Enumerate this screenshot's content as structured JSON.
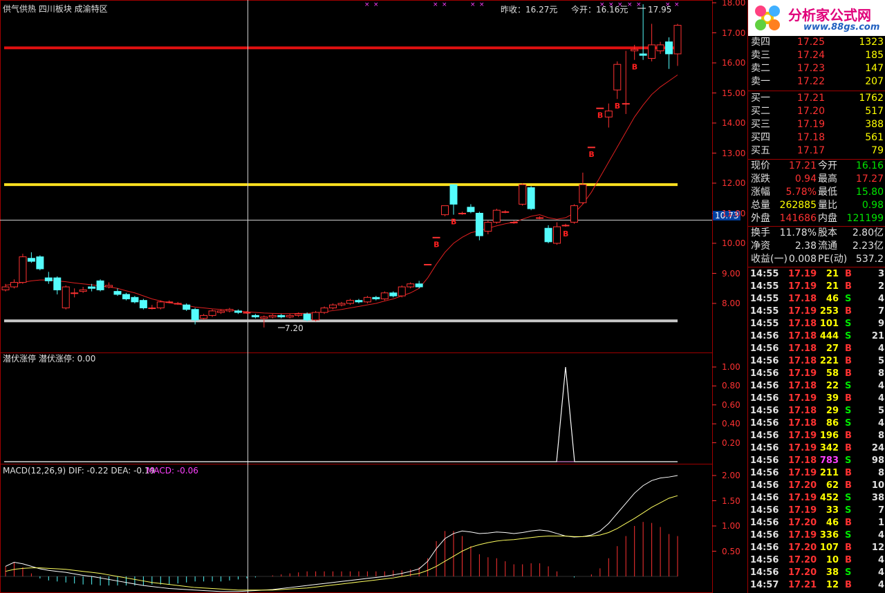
{
  "top_info": {
    "title": "供气供热 四川板块 成渝特区",
    "prev_close": "昨收：16.27元",
    "open": "今开：16.16元",
    "high_mark": "17.95",
    "low_mark": "7.20",
    "crosshair_value": "10.73"
  },
  "indicator2_title": "潜伏涨停  潜伏涨停: 0.00",
  "macd_title": "MACD(12,26,9)  DIF: -0.22  DEA: -0.19",
  "macd_value": "MACD: -0.06",
  "colors": {
    "up": "#ff3232",
    "down": "#54fcfc",
    "ma": "#e02020",
    "grid": "#a00000",
    "axis": "#ff3232"
  },
  "main_axis": [
    "18.00",
    "17.00",
    "16.00",
    "15.00",
    "14.00",
    "13.00",
    "12.00",
    "11.00",
    "10.00",
    "9.00",
    "8.00"
  ],
  "ind_axis": [
    "1.00",
    "0.80",
    "0.60",
    "0.40",
    "0.20"
  ],
  "macd_axis": [
    "2.00",
    "1.50",
    "1.00",
    "0.50"
  ],
  "hlines": {
    "red": 16.5,
    "yellow": 11.95,
    "gray": 7.42
  },
  "chart_data": {
    "type": "candlestick",
    "price_range": [
      7.0,
      18.0
    ],
    "candles": [
      [
        8.45,
        8.55,
        8.4,
        8.65
      ],
      [
        8.55,
        8.7,
        8.5,
        8.8
      ],
      [
        8.7,
        9.55,
        8.65,
        9.65
      ],
      [
        9.5,
        9.4,
        9.35,
        9.7
      ],
      [
        9.55,
        9.15,
        9.1,
        9.6
      ],
      [
        8.85,
        8.75,
        8.65,
        9.05
      ],
      [
        8.85,
        8.45,
        8.3,
        8.9
      ],
      [
        7.85,
        8.55,
        7.8,
        8.6
      ],
      [
        8.35,
        8.35,
        8.2,
        8.5
      ],
      [
        8.4,
        8.45,
        8.35,
        8.55
      ],
      [
        8.55,
        8.5,
        8.4,
        8.65
      ],
      [
        8.75,
        8.45,
        8.4,
        8.8
      ],
      [
        8.55,
        8.6,
        8.5,
        8.7
      ],
      [
        8.4,
        8.3,
        8.25,
        8.5
      ],
      [
        8.3,
        8.15,
        8.1,
        8.35
      ],
      [
        8.2,
        8.05,
        8.0,
        8.25
      ],
      [
        8.1,
        7.85,
        7.8,
        8.15
      ],
      [
        7.85,
        7.85,
        7.8,
        7.95
      ],
      [
        7.85,
        8.05,
        7.8,
        8.1
      ],
      [
        8.05,
        8.05,
        8.0,
        8.1
      ],
      [
        8.0,
        8.0,
        7.95,
        8.05
      ],
      [
        7.95,
        7.8,
        7.75,
        8.0
      ],
      [
        7.8,
        7.45,
        7.3,
        7.85
      ],
      [
        7.5,
        7.6,
        7.45,
        7.65
      ],
      [
        7.6,
        7.75,
        7.55,
        7.8
      ],
      [
        7.7,
        7.75,
        7.65,
        7.8
      ],
      [
        7.75,
        7.8,
        7.7,
        7.85
      ],
      [
        7.75,
        7.7,
        7.65,
        7.8
      ],
      [
        7.7,
        7.7,
        7.65,
        7.75
      ],
      [
        7.6,
        7.55,
        7.5,
        7.65
      ],
      [
        7.5,
        7.55,
        7.2,
        7.6
      ],
      [
        7.55,
        7.6,
        7.5,
        7.65
      ],
      [
        7.6,
        7.55,
        7.5,
        7.65
      ],
      [
        7.55,
        7.6,
        7.5,
        7.65
      ],
      [
        7.6,
        7.65,
        7.55,
        7.7
      ],
      [
        7.65,
        7.45,
        7.4,
        7.7
      ],
      [
        7.45,
        7.7,
        7.4,
        7.75
      ],
      [
        7.7,
        7.85,
        7.65,
        7.9
      ],
      [
        7.85,
        7.95,
        7.8,
        8.0
      ],
      [
        7.95,
        8.0,
        7.9,
        8.05
      ],
      [
        8.0,
        8.1,
        7.95,
        8.15
      ],
      [
        8.1,
        8.05,
        8.0,
        8.15
      ],
      [
        8.05,
        8.2,
        8.0,
        8.25
      ],
      [
        8.2,
        8.15,
        8.1,
        8.25
      ],
      [
        8.15,
        8.35,
        8.1,
        8.4
      ],
      [
        8.35,
        8.25,
        8.2,
        8.4
      ],
      [
        8.25,
        8.55,
        8.2,
        8.6
      ],
      [
        8.55,
        8.65,
        8.5,
        8.7
      ],
      [
        8.65,
        8.55,
        8.5,
        8.75
      ],
      [
        9.3,
        9.3,
        9.3,
        9.3
      ],
      [
        10.2,
        10.2,
        10.2,
        10.2
      ],
      [
        10.95,
        11.25,
        10.9,
        11.25
      ],
      [
        11.95,
        11.3,
        10.95,
        11.95
      ],
      [
        11.0,
        11.0,
        10.95,
        11.05
      ],
      [
        11.2,
        11.05,
        11.0,
        11.3
      ],
      [
        11.0,
        10.25,
        10.1,
        11.05
      ],
      [
        10.4,
        10.7,
        10.3,
        10.75
      ],
      [
        10.7,
        11.1,
        10.65,
        11.15
      ],
      [
        11.05,
        11.05,
        11.0,
        11.1
      ],
      [
        10.7,
        10.7,
        10.65,
        10.75
      ],
      [
        11.3,
        11.95,
        11.25,
        12.0
      ],
      [
        11.85,
        11.15,
        11.1,
        11.9
      ],
      [
        10.85,
        10.85,
        10.8,
        10.9
      ],
      [
        10.5,
        10.05,
        10.0,
        10.6
      ],
      [
        10.0,
        10.55,
        9.95,
        10.7
      ],
      [
        10.6,
        10.6,
        10.55,
        10.65
      ],
      [
        10.7,
        11.25,
        10.65,
        11.3
      ],
      [
        11.35,
        11.95,
        11.3,
        12.35
      ],
      [
        13.2,
        13.2,
        13.2,
        13.2
      ],
      [
        14.5,
        14.5,
        14.5,
        14.5
      ],
      [
        14.2,
        14.4,
        13.85,
        14.65
      ],
      [
        15.1,
        15.95,
        14.8,
        16.05
      ],
      [
        14.65,
        14.65,
        14.3,
        16.4
      ],
      [
        16.4,
        16.45,
        16.1,
        16.6
      ],
      [
        16.3,
        16.25,
        16.1,
        17.95
      ],
      [
        16.15,
        16.6,
        16.05,
        17.3
      ],
      [
        16.4,
        16.6,
        16.3,
        16.7
      ],
      [
        16.7,
        16.3,
        15.8,
        16.85
      ],
      [
        16.3,
        17.25,
        15.9,
        17.3
      ]
    ],
    "buy_markers": [
      0,
      0,
      0,
      0,
      0,
      0,
      0,
      0,
      0,
      0,
      0,
      0,
      0,
      0,
      0,
      0,
      0,
      0,
      0,
      0,
      0,
      0,
      0,
      0,
      0,
      0,
      0,
      0,
      0,
      0,
      0,
      0,
      0,
      0,
      0,
      0,
      0,
      0,
      0,
      0,
      0,
      0,
      0,
      0,
      0,
      0,
      0,
      0,
      0,
      0,
      1,
      0,
      1,
      0,
      0,
      0,
      0,
      0,
      0,
      0,
      0,
      0,
      0,
      0,
      0,
      1,
      0,
      0,
      1,
      1,
      0,
      1,
      0,
      1,
      0,
      0,
      0,
      0,
      0
    ],
    "ma": [
      8.6,
      8.65,
      8.7,
      8.75,
      8.78,
      8.78,
      8.75,
      8.72,
      8.68,
      8.65,
      8.62,
      8.58,
      8.55,
      8.5,
      8.42,
      8.35,
      8.25,
      8.15,
      8.08,
      8.02,
      7.98,
      7.93,
      7.88,
      7.85,
      7.82,
      7.8,
      7.78,
      7.75,
      7.72,
      7.7,
      7.68,
      7.67,
      7.66,
      7.66,
      7.67,
      7.67,
      7.69,
      7.72,
      7.76,
      7.8,
      7.85,
      7.9,
      7.95,
      8.0,
      8.08,
      8.15,
      8.25,
      8.35,
      8.5,
      8.85,
      9.3,
      9.7,
      10.0,
      10.2,
      10.35,
      10.42,
      10.5,
      10.58,
      10.65,
      10.7,
      10.8,
      10.9,
      10.95,
      10.85,
      10.8,
      10.85,
      11.0,
      11.3,
      11.7,
      12.2,
      12.7,
      13.2,
      13.7,
      14.2,
      14.6,
      14.95,
      15.2,
      15.4,
      15.6
    ],
    "indicator_spike_index": 65,
    "macd_dif": [
      0.2,
      0.28,
      0.25,
      0.2,
      0.15,
      0.12,
      0.1,
      0.08,
      0.05,
      0.02,
      0.0,
      -0.03,
      -0.06,
      -0.09,
      -0.12,
      -0.15,
      -0.18,
      -0.2,
      -0.22,
      -0.24,
      -0.25,
      -0.26,
      -0.27,
      -0.28,
      -0.29,
      -0.3,
      -0.3,
      -0.3,
      -0.29,
      -0.28,
      -0.27,
      -0.26,
      -0.24,
      -0.22,
      -0.2,
      -0.18,
      -0.16,
      -0.14,
      -0.12,
      -0.1,
      -0.08,
      -0.06,
      -0.04,
      -0.02,
      0.0,
      0.03,
      0.06,
      0.1,
      0.15,
      0.3,
      0.55,
      0.75,
      0.85,
      0.9,
      0.88,
      0.85,
      0.86,
      0.88,
      0.87,
      0.85,
      0.87,
      0.9,
      0.92,
      0.9,
      0.85,
      0.8,
      0.78,
      0.79,
      0.82,
      0.9,
      1.05,
      1.25,
      1.45,
      1.65,
      1.8,
      1.9,
      1.95,
      1.97,
      2.0
    ],
    "macd_dea": [
      0.1,
      0.14,
      0.16,
      0.17,
      0.17,
      0.16,
      0.15,
      0.14,
      0.12,
      0.1,
      0.08,
      0.06,
      0.03,
      0.0,
      -0.03,
      -0.06,
      -0.09,
      -0.12,
      -0.14,
      -0.16,
      -0.18,
      -0.2,
      -0.22,
      -0.23,
      -0.24,
      -0.25,
      -0.26,
      -0.27,
      -0.27,
      -0.27,
      -0.27,
      -0.27,
      -0.26,
      -0.25,
      -0.24,
      -0.23,
      -0.21,
      -0.19,
      -0.17,
      -0.15,
      -0.13,
      -0.11,
      -0.09,
      -0.07,
      -0.05,
      -0.03,
      0.0,
      0.03,
      0.06,
      0.12,
      0.2,
      0.3,
      0.4,
      0.5,
      0.58,
      0.63,
      0.67,
      0.7,
      0.72,
      0.73,
      0.75,
      0.77,
      0.79,
      0.8,
      0.8,
      0.8,
      0.79,
      0.79,
      0.8,
      0.82,
      0.87,
      0.95,
      1.05,
      1.15,
      1.26,
      1.37,
      1.46,
      1.55,
      1.6
    ]
  },
  "quote": {
    "sell": [
      {
        "label": "卖四",
        "price": "17.25",
        "vol": "1323"
      },
      {
        "label": "卖三",
        "price": "17.24",
        "vol": "185"
      },
      {
        "label": "卖二",
        "price": "17.23",
        "vol": "147"
      },
      {
        "label": "卖一",
        "price": "17.22",
        "vol": "207"
      }
    ],
    "buy": [
      {
        "label": "买一",
        "price": "17.21",
        "vol": "1762"
      },
      {
        "label": "买二",
        "price": "17.20",
        "vol": "517"
      },
      {
        "label": "买三",
        "price": "17.19",
        "vol": "388"
      },
      {
        "label": "买四",
        "price": "17.18",
        "vol": "561"
      },
      {
        "label": "买五",
        "price": "17.17",
        "vol": "79"
      }
    ],
    "stats": [
      {
        "l1": "现价",
        "v1": "17.21",
        "c1": "red",
        "l2": "今开",
        "v2": "16.16",
        "c2": "green"
      },
      {
        "l1": "涨跌",
        "v1": "0.94",
        "c1": "red",
        "l2": "最高",
        "v2": "17.27",
        "c2": "red"
      },
      {
        "l1": "涨幅",
        "v1": "5.78%",
        "c1": "red",
        "l2": "最低",
        "v2": "15.80",
        "c2": "green"
      },
      {
        "l1": "总量",
        "v1": "262885",
        "c1": "yellow",
        "l2": "量比",
        "v2": "0.98",
        "c2": "green"
      },
      {
        "l1": "外盘",
        "v1": "141686",
        "c1": "red",
        "l2": "内盘",
        "v2": "121199",
        "c2": "green"
      }
    ],
    "stats2": [
      {
        "l1": "换手",
        "v1": "11.78%",
        "l2": "股本",
        "v2": "2.80亿"
      },
      {
        "l1": "净资",
        "v1": "2.38",
        "l2": "流通",
        "v2": "2.23亿"
      },
      {
        "l1": "收益(一)",
        "v1": "0.008",
        "l2": "PE(动)",
        "v2": "537.2"
      }
    ]
  },
  "ticks": [
    {
      "t": "14:55",
      "p": "17.19",
      "v": "21",
      "s": "B",
      "n": "3"
    },
    {
      "t": "14:55",
      "p": "17.19",
      "v": "21",
      "s": "B",
      "n": "2"
    },
    {
      "t": "14:55",
      "p": "17.18",
      "v": "46",
      "s": "S",
      "n": "4"
    },
    {
      "t": "14:55",
      "p": "17.19",
      "v": "253",
      "s": "B",
      "n": "7"
    },
    {
      "t": "14:55",
      "p": "17.18",
      "v": "101",
      "s": "S",
      "n": "9"
    },
    {
      "t": "14:56",
      "p": "17.18",
      "v": "444",
      "s": "S",
      "n": "21"
    },
    {
      "t": "14:56",
      "p": "17.18",
      "v": "27",
      "s": "B",
      "n": "4"
    },
    {
      "t": "14:56",
      "p": "17.18",
      "v": "221",
      "s": "B",
      "n": "5"
    },
    {
      "t": "14:56",
      "p": "17.19",
      "v": "58",
      "s": "B",
      "n": "8"
    },
    {
      "t": "14:56",
      "p": "17.18",
      "v": "22",
      "s": "S",
      "n": "4"
    },
    {
      "t": "14:56",
      "p": "17.19",
      "v": "39",
      "s": "B",
      "n": "4"
    },
    {
      "t": "14:56",
      "p": "17.18",
      "v": "29",
      "s": "S",
      "n": "5"
    },
    {
      "t": "14:56",
      "p": "17.18",
      "v": "86",
      "s": "S",
      "n": "4"
    },
    {
      "t": "14:56",
      "p": "17.19",
      "v": "196",
      "s": "B",
      "n": "8"
    },
    {
      "t": "14:56",
      "p": "17.19",
      "v": "342",
      "s": "B",
      "n": "24"
    },
    {
      "t": "14:56",
      "p": "17.18",
      "v": "783",
      "s": "S",
      "n": "98",
      "vc": "magenta"
    },
    {
      "t": "14:56",
      "p": "17.19",
      "v": "211",
      "s": "B",
      "n": "8"
    },
    {
      "t": "14:56",
      "p": "17.20",
      "v": "62",
      "s": "B",
      "n": "10"
    },
    {
      "t": "14:56",
      "p": "17.19",
      "v": "452",
      "s": "S",
      "n": "38"
    },
    {
      "t": "14:56",
      "p": "17.19",
      "v": "33",
      "s": "S",
      "n": "7"
    },
    {
      "t": "14:56",
      "p": "17.20",
      "v": "46",
      "s": "B",
      "n": "1"
    },
    {
      "t": "14:56",
      "p": "17.19",
      "v": "336",
      "s": "S",
      "n": "4"
    },
    {
      "t": "14:56",
      "p": "17.20",
      "v": "107",
      "s": "B",
      "n": "12"
    },
    {
      "t": "14:56",
      "p": "17.20",
      "v": "10",
      "s": "B",
      "n": "4"
    },
    {
      "t": "14:56",
      "p": "17.20",
      "v": "38",
      "s": "S",
      "n": "4"
    },
    {
      "t": "14:57",
      "p": "17.21",
      "v": "12",
      "s": "B",
      "n": "4"
    }
  ]
}
